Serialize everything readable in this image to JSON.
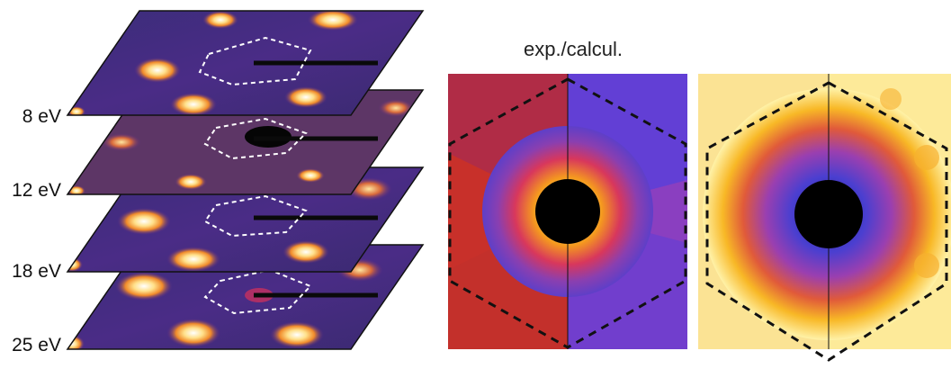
{
  "figure": {
    "energy_labels": [
      "8 eV",
      "12 eV",
      "18 eV",
      "25 eV"
    ],
    "panel_title": "exp./calcul.",
    "colors": {
      "background_purple": "#5b2a86",
      "glow_orange": "#f28a1c",
      "hot_white": "#fff4c2",
      "dark_spot": "#000000",
      "frame": "#111111"
    }
  }
}
